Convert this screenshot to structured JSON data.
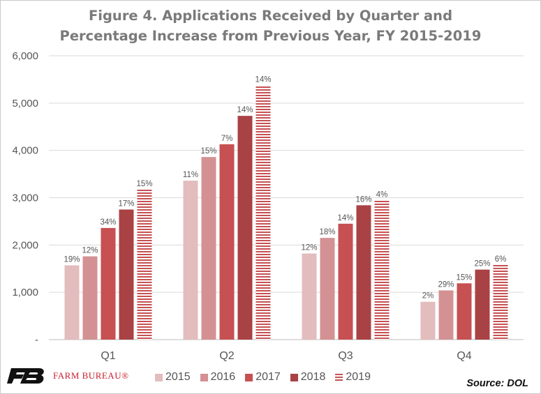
{
  "chart_data": {
    "type": "bar",
    "title_line1": "Figure 4. Applications Received by Quarter and",
    "title_line2": "Percentage Increase from Previous Year, FY 2015-2019",
    "xlabel": "",
    "ylabel": "",
    "categories": [
      "Q1",
      "Q2",
      "Q3",
      "Q4"
    ],
    "ylim": [
      0,
      6000
    ],
    "yticks": [
      {
        "value": 0,
        "label": "-"
      },
      {
        "value": 1000,
        "label": "1,000"
      },
      {
        "value": 2000,
        "label": "2,000"
      },
      {
        "value": 3000,
        "label": "3,000"
      },
      {
        "value": 4000,
        "label": "4,000"
      },
      {
        "value": 5000,
        "label": "5,000"
      },
      {
        "value": 6000,
        "label": "6,000"
      }
    ],
    "grid": true,
    "legend_position": "bottom",
    "series": [
      {
        "name": "2015",
        "color": "#e3bcbd",
        "pattern": "solid",
        "values": [
          1570,
          3360,
          1820,
          800
        ],
        "labels": [
          "19%",
          "11%",
          "12%",
          "2%"
        ]
      },
      {
        "name": "2016",
        "color": "#d49193",
        "pattern": "solid",
        "values": [
          1760,
          3860,
          2150,
          1040
        ],
        "labels": [
          "12%",
          "15%",
          "18%",
          "29%"
        ]
      },
      {
        "name": "2017",
        "color": "#c65052",
        "pattern": "solid",
        "values": [
          2360,
          4130,
          2450,
          1190
        ],
        "labels": [
          "34%",
          "7%",
          "14%",
          "15%"
        ]
      },
      {
        "name": "2018",
        "color": "#a94244",
        "pattern": "solid",
        "values": [
          2750,
          4730,
          2840,
          1480
        ],
        "labels": [
          "17%",
          "14%",
          "16%",
          "25%"
        ]
      },
      {
        "name": "2019",
        "color": "#c65052",
        "pattern": "horizontal-stripes",
        "values": [
          3170,
          5370,
          2940,
          1580
        ],
        "labels": [
          "15%",
          "14%",
          "4%",
          "6%"
        ]
      }
    ]
  },
  "branding": {
    "logo_text": "FARM BUREAU®",
    "logo_monogram": "FB",
    "logo_color": "#c8202f"
  },
  "source": "Source: DOL"
}
